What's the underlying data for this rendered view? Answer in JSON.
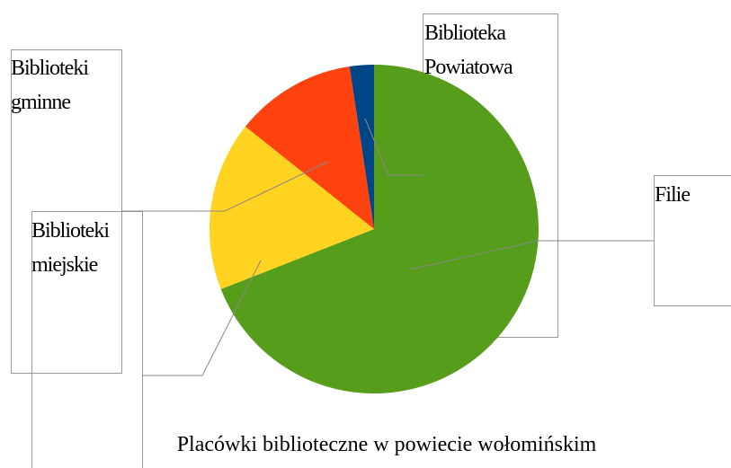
{
  "chart_data": {
    "type": "pie",
    "title": "Placówki biblioteczne w powiecie wołomińskim",
    "categories": [
      "Filie",
      "Biblioteki miejskie",
      "Biblioteki gminne",
      "Biblioteka Powiatowa"
    ],
    "values": [
      29,
      7,
      5,
      1
    ],
    "colors": [
      "#579d1c",
      "#ffd320",
      "#ff420e",
      "#004586"
    ]
  }
}
